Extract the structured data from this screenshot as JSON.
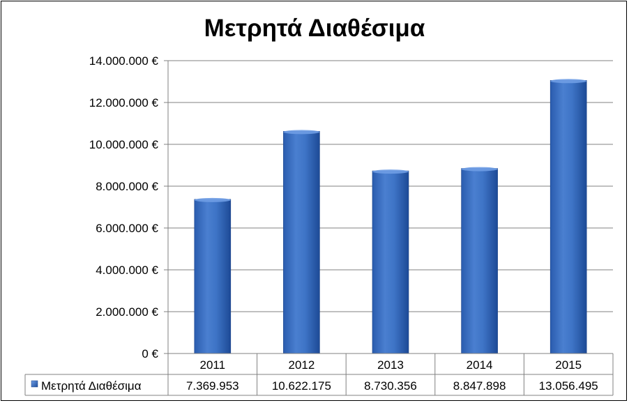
{
  "chart_data": {
    "type": "bar",
    "title": "Μετρητά Διαθέσιμα",
    "categories": [
      "2011",
      "2012",
      "2013",
      "2014",
      "2015"
    ],
    "series": [
      {
        "name": "Μετρητά Διαθέσιμα",
        "values": [
          7369953,
          10622175,
          8730356,
          8847898,
          13056495
        ],
        "value_labels": [
          "7.369.953",
          "10.622.175",
          "8.730.356",
          "8.847.898",
          "13.056.495"
        ]
      }
    ],
    "ylim": [
      0,
      14000000
    ],
    "yticks": [
      0,
      2000000,
      4000000,
      6000000,
      8000000,
      10000000,
      12000000,
      14000000
    ],
    "ytick_labels": [
      "0 €",
      "2.000.000 €",
      "4.000.000 €",
      "6.000.000 €",
      "8.000.000 €",
      "10.000.000 €",
      "12.000.000 €",
      "14.000.000 €"
    ],
    "grid": true,
    "legend": "data-table",
    "colors": {
      "bar": "#3a6fc4",
      "bar_dark": "#1f4f9e",
      "bar_light": "#6f9de4",
      "legend_key": "#2f63b8",
      "grid": "#808080"
    }
  }
}
